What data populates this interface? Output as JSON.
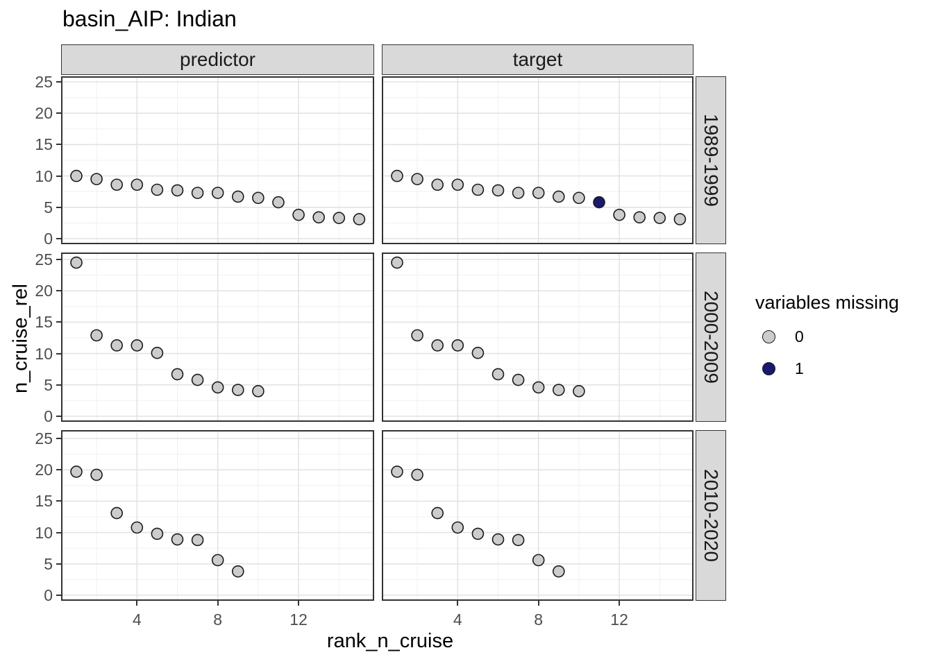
{
  "title": "basin_AIP: Indian",
  "axes": {
    "x_title": "rank_n_cruise",
    "y_title": "n_cruise_rel",
    "x_ticks": [
      4,
      8,
      12
    ],
    "y_ticks": [
      0,
      5,
      10,
      15,
      20,
      25
    ]
  },
  "legend": {
    "title": "variables missing",
    "items": [
      {
        "label": "0",
        "color": "#cccccc"
      },
      {
        "label": "1",
        "color": "#191970"
      }
    ]
  },
  "colors": {
    "point_fill_missing0": "#cccccc",
    "point_fill_missing1": "#191970",
    "point_stroke": "#1a1a1a",
    "strip_bg": "#d9d9d9",
    "panel_border": "#333333",
    "grid_major": "#e3e3e3",
    "grid_minor": "#f0f0f0",
    "tick_text": "#4d4d4d"
  },
  "chart_data": {
    "type": "scatter",
    "title": "basin_AIP: Indian",
    "xlabel": "rank_n_cruise",
    "ylabel": "n_cruise_rel",
    "xlim": [
      0.3,
      15.7
    ],
    "ylim": [
      -0.5,
      26
    ],
    "grid": true,
    "x_major_breaks": [
      4,
      8,
      12
    ],
    "x_minor_breaks": [
      2,
      6,
      10,
      14
    ],
    "y_major_breaks": [
      0,
      5,
      10,
      15,
      20,
      25
    ],
    "y_minor_breaks": [
      2.5,
      7.5,
      12.5,
      17.5,
      22.5
    ],
    "col_labels": [
      "predictor",
      "target"
    ],
    "row_labels": [
      "1989-1999",
      "2000-2009",
      "2010-2020"
    ],
    "legend_title": "variables missing",
    "legend_levels": [
      "0",
      "1"
    ],
    "start_rank": 1,
    "facets": [
      {
        "col": "predictor",
        "row": "1989-1999",
        "values": [
          10.0,
          9.5,
          8.6,
          8.6,
          7.8,
          7.7,
          7.3,
          7.3,
          6.7,
          6.5,
          5.8,
          3.8,
          3.4,
          3.3,
          3.1
        ],
        "missing_ranks": []
      },
      {
        "col": "target",
        "row": "1989-1999",
        "values": [
          10.0,
          9.5,
          8.6,
          8.6,
          7.8,
          7.7,
          7.3,
          7.3,
          6.7,
          6.5,
          5.8,
          3.8,
          3.4,
          3.3,
          3.1
        ],
        "missing_ranks": [
          11
        ]
      },
      {
        "col": "predictor",
        "row": "2000-2009",
        "values": [
          24.5,
          12.9,
          11.3,
          11.3,
          10.1,
          6.7,
          5.8,
          4.6,
          4.2,
          4.0
        ],
        "missing_ranks": []
      },
      {
        "col": "target",
        "row": "2000-2009",
        "values": [
          24.5,
          12.9,
          11.3,
          11.3,
          10.1,
          6.7,
          5.8,
          4.6,
          4.2,
          4.0
        ],
        "missing_ranks": []
      },
      {
        "col": "predictor",
        "row": "2010-2020",
        "values": [
          19.7,
          19.2,
          13.1,
          10.8,
          9.8,
          8.9,
          8.8,
          5.6,
          3.8
        ],
        "missing_ranks": []
      },
      {
        "col": "target",
        "row": "2010-2020",
        "values": [
          19.7,
          19.2,
          13.1,
          10.8,
          9.8,
          8.9,
          8.8,
          5.6,
          3.8
        ],
        "missing_ranks": []
      }
    ]
  }
}
